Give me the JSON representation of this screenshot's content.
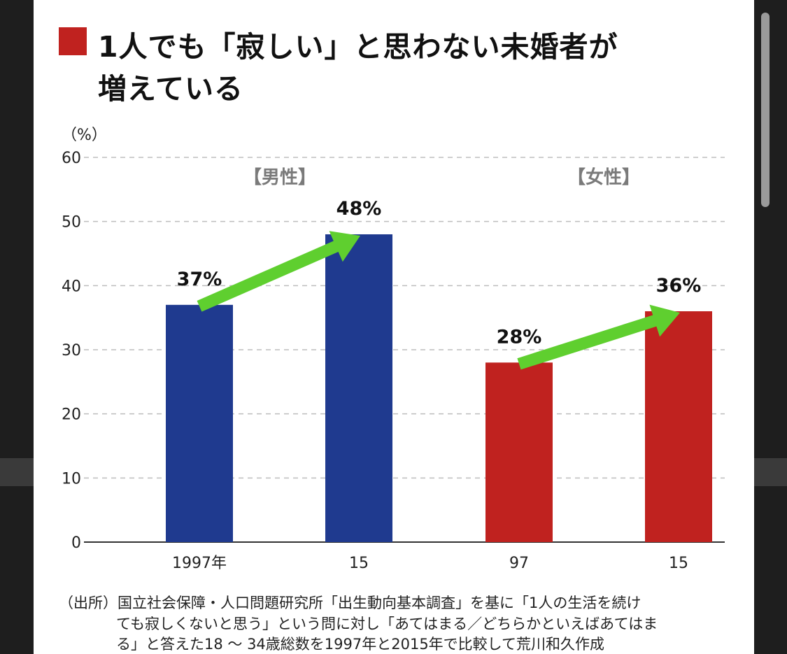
{
  "title_line1": "1人でも「寂しい」と思わない未婚者が",
  "title_line2": "増えている",
  "footnote": {
    "line1": "（出所）国立社会保障・人口問題研究所「出生動向基本調査」を基に「1人の生活を続け",
    "line2": "ても寂しくないと思う」という問に対し「あてはまる／どちらかといえばあてはま",
    "line3": "る」と答えた18 ～ 34歳総数を1997年と2015年で比較して荒川和久作成"
  },
  "colors": {
    "male": "#1f3a8f",
    "female": "#c0221f",
    "arrow": "#5fcf2f",
    "title_mark": "#c0221f"
  },
  "chart_data": {
    "type": "bar",
    "title": "1人でも「寂しい」と思わない未婚者が増えている",
    "ylabel": "（%）",
    "ylim": [
      0,
      60
    ],
    "yticks": [
      0,
      10,
      20,
      30,
      40,
      50,
      60
    ],
    "grid": true,
    "categories": [
      "1997年",
      "15",
      "97",
      "15"
    ],
    "groups": [
      {
        "name": "【男性】",
        "color": "#1f3a8f",
        "categories": [
          "1997年",
          "15"
        ],
        "values": [
          37,
          48
        ],
        "labels": [
          "37%",
          "48%"
        ]
      },
      {
        "name": "【女性】",
        "color": "#c0221f",
        "categories": [
          "97",
          "15"
        ],
        "values": [
          28,
          36
        ],
        "labels": [
          "28%",
          "36%"
        ]
      }
    ],
    "annotations": [
      "increase arrow from 1997 to 2015 for each group"
    ]
  }
}
